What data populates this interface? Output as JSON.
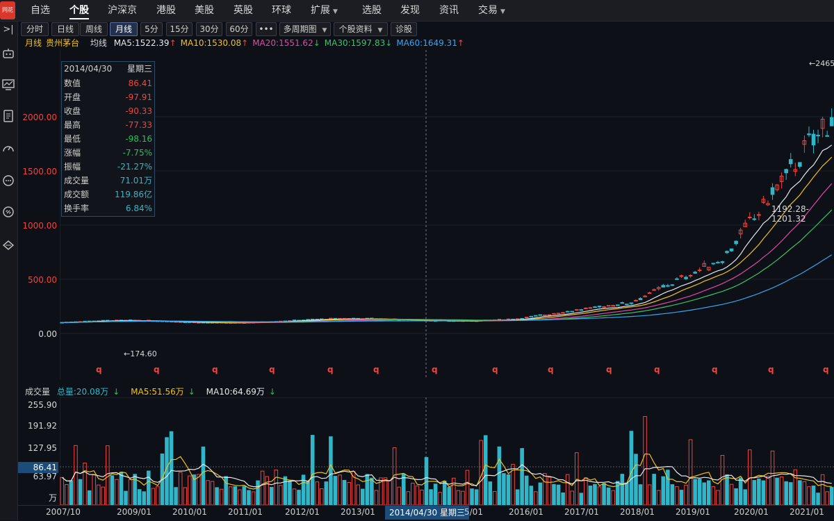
{
  "nav": {
    "items": [
      "自选",
      "个股",
      "沪深京",
      "港股",
      "美股",
      "英股",
      "环球",
      "扩展",
      "选股",
      "发现",
      "资讯",
      "交易"
    ],
    "active": "个股"
  },
  "toolbar": {
    "periods": [
      "分时",
      "日线",
      "周线",
      "月线",
      "5分",
      "15分",
      "30分",
      "60分"
    ],
    "active_period": "月线",
    "more": "•••",
    "multi_period": "多周期图",
    "profile": "个股资料",
    "diagnose": "诊股"
  },
  "stock": {
    "period_label": "月线",
    "name": "贵州茅台",
    "ma_label": "均线"
  },
  "ma": [
    {
      "text": "MA5:1522.39",
      "arrow": "↑",
      "color": "#e8e8e8"
    },
    {
      "text": "MA10:1530.08",
      "arrow": "↑",
      "color": "#f0c020"
    },
    {
      "text": "MA20:1551.62",
      "arrow": "↓",
      "color": "#e04aa6"
    },
    {
      "text": "MA30:1597.83",
      "arrow": "↓",
      "color": "#3bc36a"
    },
    {
      "text": "MA60:1649.31",
      "arrow": "↑",
      "color": "#3aa4f0"
    }
  ],
  "info": {
    "date": "2014/04/30",
    "weekday": "星期三",
    "rows": [
      {
        "k": "数值",
        "v": "86.41",
        "c": "red"
      },
      {
        "k": "开盘",
        "v": "-97.91",
        "c": "red"
      },
      {
        "k": "收盘",
        "v": "-90.33",
        "c": "red"
      },
      {
        "k": "最高",
        "v": "-77.33",
        "c": "red"
      },
      {
        "k": "最低",
        "v": "-98.16",
        "c": "green"
      },
      {
        "k": "涨幅",
        "v": "-7.75%",
        "c": "green"
      },
      {
        "k": "振幅",
        "v": "-21.27%",
        "c": "cyan"
      },
      {
        "k": "成交量",
        "v": "71.01万",
        "c": "cyan"
      },
      {
        "k": "成交额",
        "v": "119.86亿",
        "c": "cyan"
      },
      {
        "k": "换手率",
        "v": "6.84%",
        "c": "cyan"
      }
    ]
  },
  "price_axis": [
    "2000.00",
    "1500.00",
    "1000.00",
    "500.00",
    "0.00"
  ],
  "annotations": {
    "high": "←2465",
    "low": "←174.60",
    "range": "1192.28-1201.32",
    "marker": "q"
  },
  "volume": {
    "title": "成交量",
    "total": "总量:20.08万",
    "total_arrow": "↓",
    "ma5": "MA5:51.56万",
    "ma5_arrow": "↓",
    "ma10": "MA10:64.69万",
    "ma10_arrow": "↓",
    "axis": [
      "255.90",
      "191.92",
      "127.95",
      "63.97"
    ],
    "unit": "万",
    "cursor_value": "86.41"
  },
  "xaxis": {
    "labels": [
      "2007/10",
      "2009/01",
      "2010/01",
      "2011/01",
      "2012/01",
      "2013/01",
      "2016/01",
      "2017/01",
      "2018/01",
      "2019/01",
      "2020/01",
      "2021/01"
    ],
    "cursor_tag": "2014/04/30 星期三",
    "partial": "5/01"
  }
}
